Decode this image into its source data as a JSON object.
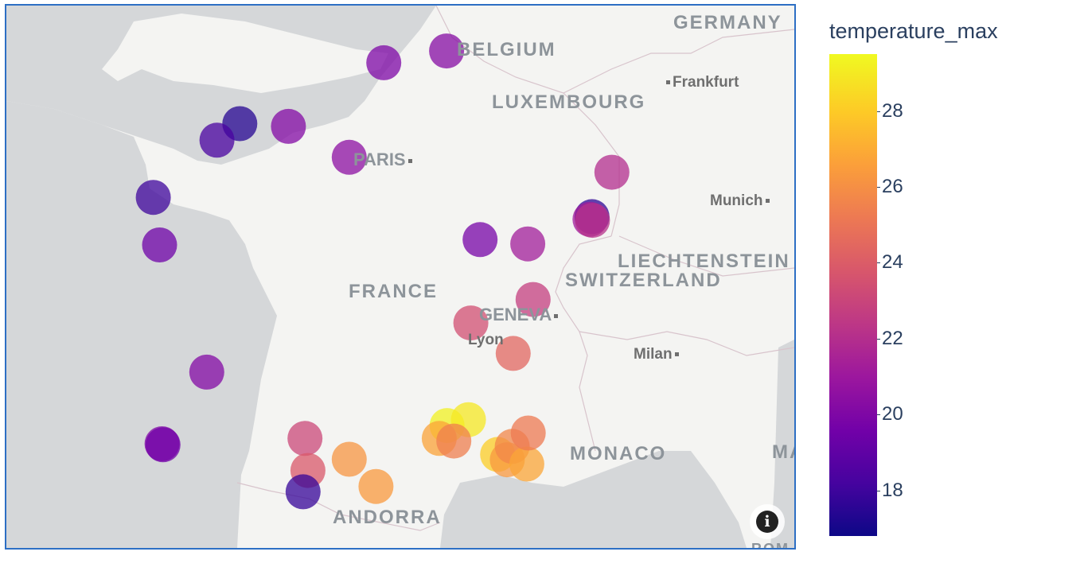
{
  "map": {
    "country_labels": [
      {
        "text": "GERMANY"
      },
      {
        "text": "BELGIUM"
      },
      {
        "text": "LUXEMBOURG"
      },
      {
        "text": "LIECHTENSTEIN"
      },
      {
        "text": "SWITZERLAND"
      },
      {
        "text": "FRANCE"
      },
      {
        "text": "MONACO"
      },
      {
        "text": "ANDORRA"
      },
      {
        "text": "MA"
      },
      {
        "text": "ROM"
      }
    ],
    "city_labels": [
      {
        "text": "Frankfurt"
      },
      {
        "text": "PARIS"
      },
      {
        "text": "Munich"
      },
      {
        "text": "GENEVA"
      },
      {
        "text": "Lyon"
      },
      {
        "text": "Milan"
      }
    ],
    "info_icon": "info-icon",
    "points": [
      {
        "lon": 4.35,
        "lat": 50.85,
        "temperature_max": 20.3
      },
      {
        "lon": 3.06,
        "lat": 50.63,
        "temperature_max": 20.0
      },
      {
        "lon": 1.1,
        "lat": 49.44,
        "temperature_max": 20.2
      },
      {
        "lon": 0.1,
        "lat": 49.49,
        "temperature_max": 17.4
      },
      {
        "lon": -0.37,
        "lat": 49.18,
        "temperature_max": 18.3
      },
      {
        "lon": -1.68,
        "lat": 48.11,
        "temperature_max": 18.0
      },
      {
        "lon": -1.55,
        "lat": 47.22,
        "temperature_max": 19.5
      },
      {
        "lon": 2.35,
        "lat": 48.86,
        "temperature_max": 20.5
      },
      {
        "lon": 7.75,
        "lat": 48.58,
        "temperature_max": 22.0
      },
      {
        "lon": 7.34,
        "lat": 47.75,
        "temperature_max": 17.6
      },
      {
        "lon": 7.3,
        "lat": 47.7,
        "temperature_max": 21.2
      },
      {
        "lon": 7.35,
        "lat": 47.68,
        "temperature_max": 22.2
      },
      {
        "lon": 5.04,
        "lat": 47.32,
        "temperature_max": 19.8
      },
      {
        "lon": 6.02,
        "lat": 47.24,
        "temperature_max": 21.3
      },
      {
        "lon": -0.58,
        "lat": 44.84,
        "temperature_max": 20.2
      },
      {
        "lon": 4.85,
        "lat": 45.76,
        "temperature_max": 23.5
      },
      {
        "lon": 6.13,
        "lat": 46.2,
        "temperature_max": 22.8
      },
      {
        "lon": 5.72,
        "lat": 45.19,
        "temperature_max": 24.5
      },
      {
        "lon": 1.44,
        "lat": 43.6,
        "temperature_max": 23.2
      },
      {
        "lon": 1.5,
        "lat": 43.0,
        "temperature_max": 23.9
      },
      {
        "lon": 2.35,
        "lat": 43.21,
        "temperature_max": 26.3
      },
      {
        "lon": 1.4,
        "lat": 42.6,
        "temperature_max": 17.8
      },
      {
        "lon": 2.9,
        "lat": 42.7,
        "temperature_max": 26.5
      },
      {
        "lon": -1.5,
        "lat": 43.5,
        "temperature_max": 20.1
      },
      {
        "lon": -1.48,
        "lat": 43.48,
        "temperature_max": 19.6
      },
      {
        "lon": 4.36,
        "lat": 43.84,
        "temperature_max": 29.3
      },
      {
        "lon": 4.8,
        "lat": 43.95,
        "temperature_max": 29.0
      },
      {
        "lon": 4.2,
        "lat": 43.6,
        "temperature_max": 26.8
      },
      {
        "lon": 4.5,
        "lat": 43.55,
        "temperature_max": 25.5
      },
      {
        "lon": 5.4,
        "lat": 43.3,
        "temperature_max": 28.2
      },
      {
        "lon": 5.6,
        "lat": 43.2,
        "temperature_max": 26.4
      },
      {
        "lon": 5.7,
        "lat": 43.45,
        "temperature_max": 25.8
      },
      {
        "lon": 6.0,
        "lat": 43.12,
        "temperature_max": 26.9
      },
      {
        "lon": 6.03,
        "lat": 43.7,
        "temperature_max": 25.3
      }
    ]
  },
  "colorbar": {
    "title": "temperature_max",
    "range": [
      16.8,
      29.5
    ],
    "ticks": [
      "28",
      "26",
      "24",
      "22",
      "20",
      "18"
    ],
    "colorscale": [
      "#0d0887",
      "#46039f",
      "#7201a8",
      "#9c179e",
      "#bd3786",
      "#d8576b",
      "#ed7953",
      "#fb9f3a",
      "#fdca26",
      "#f0f921"
    ]
  },
  "colors": {
    "frame_border": "#2d6fc4",
    "land": "#f4f4f2",
    "sea": "#d5d7d9",
    "text": "#2a3f5f"
  }
}
